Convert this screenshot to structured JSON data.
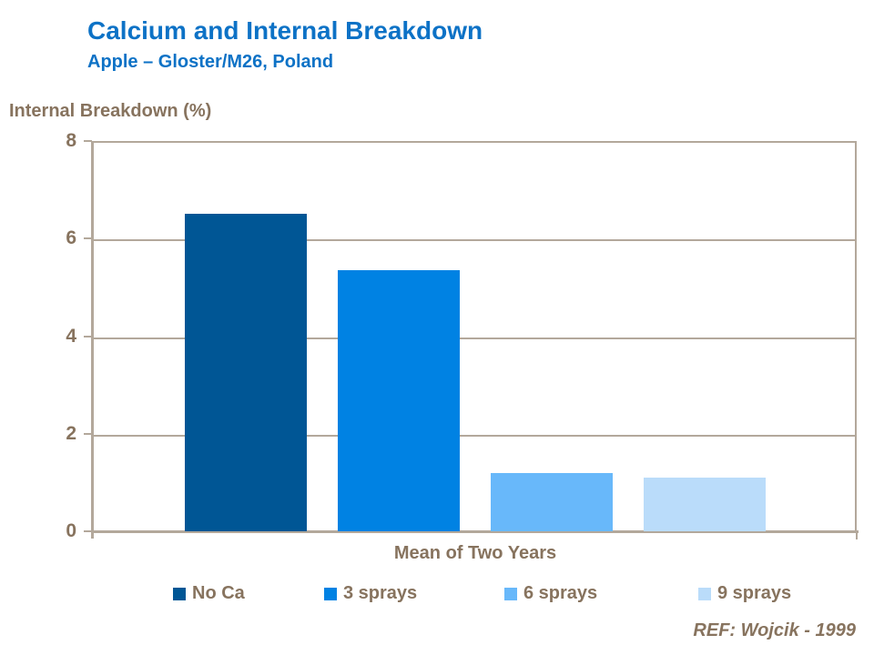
{
  "header": {
    "title": "Calcium and Internal Breakdown",
    "subtitle": "Apple – Gloster/M26, Poland"
  },
  "footer": {
    "reference": "REF: Wojcik - 1999"
  },
  "chart_data": {
    "type": "bar",
    "title": "Calcium and Internal Breakdown",
    "subtitle": "Apple – Gloster/M26, Poland",
    "y_axis_title": "Internal Breakdown (%)",
    "x_axis_label": "Mean of Two Years",
    "categories": [
      "Mean of Two Years"
    ],
    "series": [
      {
        "name": "No Ca",
        "values": [
          6.5
        ],
        "color": "#005695"
      },
      {
        "name": "3 sprays",
        "values": [
          5.35
        ],
        "color": "#0082e3"
      },
      {
        "name": "6 sprays",
        "values": [
          1.2
        ],
        "color": "#68b8fa"
      },
      {
        "name": "9 sprays",
        "values": [
          1.1
        ],
        "color": "#badcfa"
      }
    ],
    "ylim": [
      0,
      8
    ],
    "y_ticks": [
      0,
      2,
      4,
      6,
      8
    ],
    "grid": true,
    "legend_position": "bottom"
  },
  "colors": {
    "title_blue": "#0d72c6",
    "axis_text_brown": "#87735e",
    "grid_tan": "#b3a89b",
    "background": "#ffffff"
  }
}
